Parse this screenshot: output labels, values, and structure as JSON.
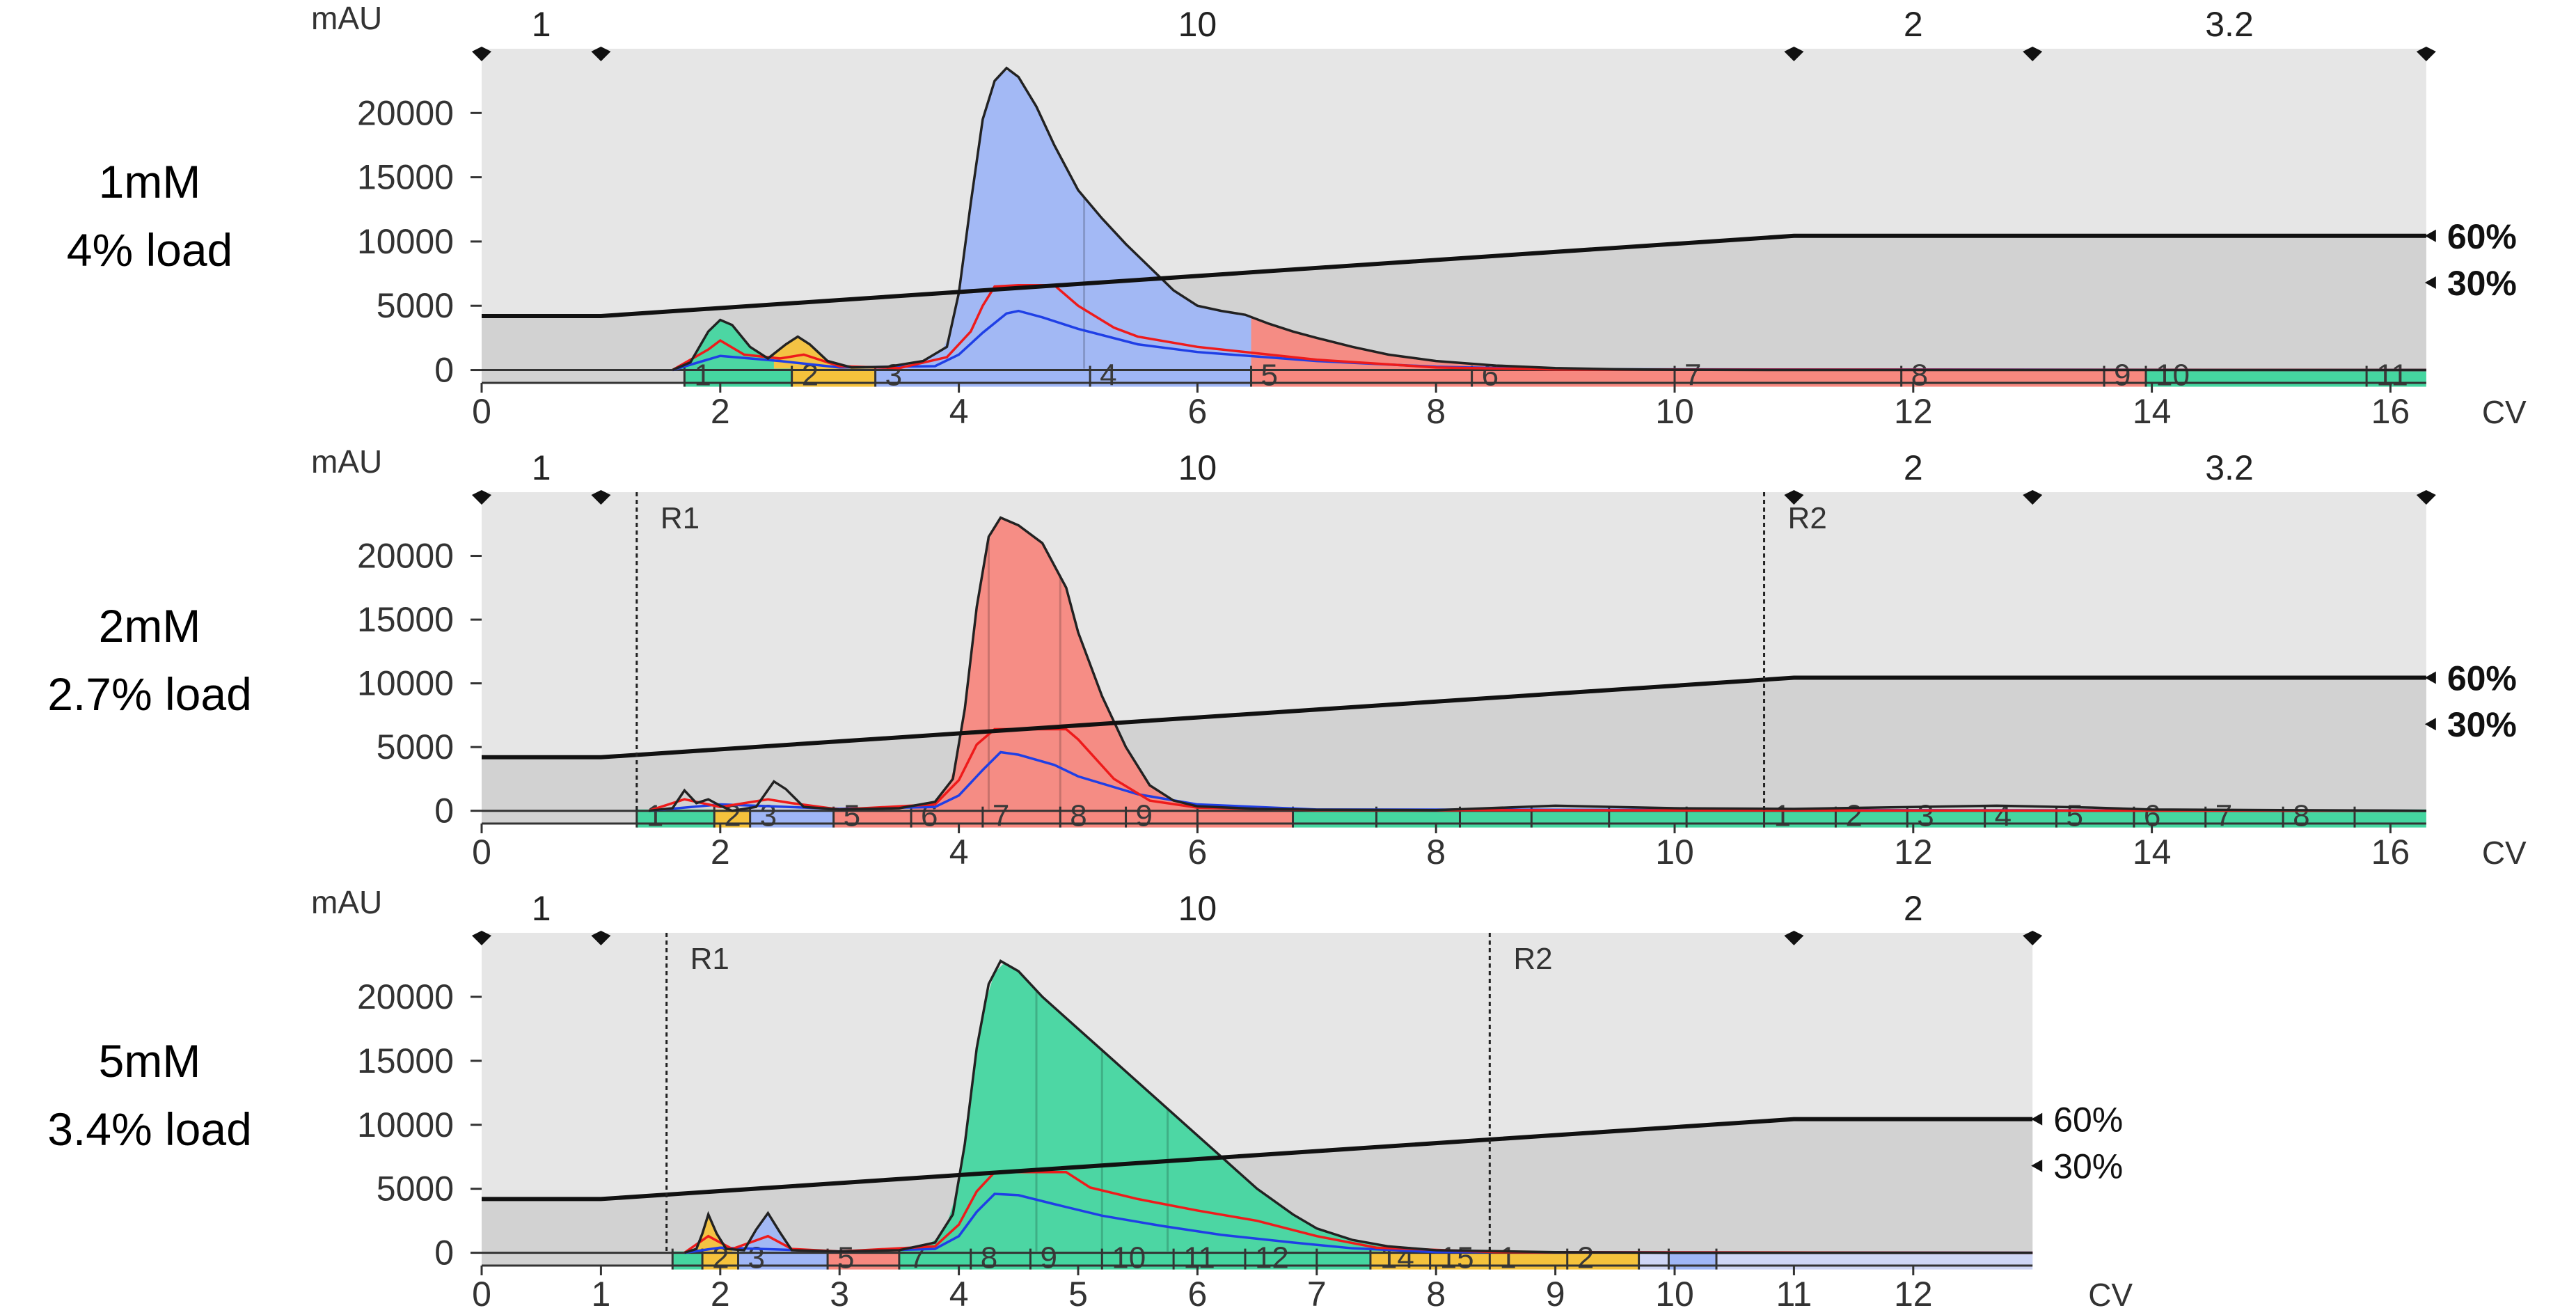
{
  "chart_data": [
    {
      "type": "area",
      "panel_label": [
        "1mM",
        "4% load"
      ],
      "xlabel": "CV",
      "ylabel": "mAU",
      "xlim": [
        0,
        16.3
      ],
      "ylim": [
        -1000,
        25000
      ],
      "xticks": [
        0,
        2,
        4,
        6,
        8,
        10,
        12,
        14,
        16
      ],
      "yticks": [
        0,
        5000,
        10000,
        15000,
        20000
      ],
      "top_markers": [
        {
          "x": 0,
          "label": "1"
        },
        {
          "x": 1,
          "label": ""
        },
        {
          "x": 11,
          "label": "10"
        },
        {
          "x": 13,
          "label": "2"
        },
        {
          "x": 16.3,
          "label": "3.2"
        }
      ],
      "top_label_positions": [
        0.5,
        6,
        12,
        14.65
      ],
      "gradient_percent_labels": [
        "60%",
        "30%"
      ],
      "gradient_label_values": [
        60,
        30
      ],
      "gradient": [
        [
          0,
          20
        ],
        [
          1,
          20
        ],
        [
          11,
          44
        ],
        [
          16.3,
          44
        ]
      ],
      "reference_lines": [],
      "uv280": {
        "x": [
          1.6,
          1.75,
          1.9,
          2.0,
          2.1,
          2.25,
          2.4,
          2.55,
          2.65,
          2.75,
          2.9,
          3.1,
          3.4,
          3.7,
          3.9,
          4.0,
          4.1,
          4.2,
          4.3,
          4.4,
          4.5,
          4.65,
          4.8,
          5.0,
          5.2,
          5.4,
          5.6,
          5.8,
          6.0,
          6.2,
          6.4,
          6.6,
          6.8,
          7.0,
          7.3,
          7.6,
          8.0,
          8.5,
          9.0,
          9.5,
          10.0,
          11.0,
          12.0,
          14.0,
          16.3
        ],
        "y": [
          0,
          600,
          3000,
          3900,
          3500,
          1800,
          900,
          2000,
          2600,
          2000,
          700,
          200,
          250,
          700,
          1800,
          6000,
          13000,
          19500,
          22500,
          23500,
          22800,
          20500,
          17500,
          14000,
          11800,
          9800,
          8000,
          6200,
          5000,
          4600,
          4300,
          3600,
          3000,
          2500,
          1800,
          1200,
          700,
          350,
          150,
          60,
          20,
          0,
          0,
          0,
          0
        ]
      },
      "uv260": {
        "x": [
          1.6,
          1.9,
          2.0,
          2.2,
          2.5,
          2.7,
          3.0,
          3.5,
          3.9,
          4.1,
          4.2,
          4.3,
          4.5,
          4.8,
          5.0,
          5.3,
          5.5,
          6.0,
          7.0,
          8.0,
          9.0,
          16.3
        ],
        "y": [
          0,
          1600,
          2300,
          1200,
          900,
          1200,
          300,
          150,
          1000,
          3000,
          5000,
          6500,
          6600,
          6600,
          5000,
          3300,
          2600,
          1800,
          800,
          200,
          40,
          0
        ]
      },
      "conductivity": {
        "x": [
          1.6,
          2.0,
          2.5,
          3.0,
          3.8,
          4.0,
          4.2,
          4.4,
          4.5,
          4.7,
          5.0,
          5.5,
          6.0,
          7.0,
          8.0,
          9.0,
          16.3
        ],
        "y": [
          0,
          1100,
          700,
          200,
          300,
          1200,
          2900,
          4400,
          4600,
          4100,
          3200,
          2000,
          1400,
          700,
          250,
          60,
          0
        ]
      },
      "fractions": [
        {
          "x0": 1.7,
          "x1": 2.6,
          "label": "1",
          "color": "#45d6a0"
        },
        {
          "x0": 2.6,
          "x1": 3.3,
          "label": "2",
          "color": "#f5c23c"
        },
        {
          "x0": 3.3,
          "x1": 5.1,
          "label": "3",
          "color": "#9fb6f6"
        },
        {
          "x0": 5.1,
          "x1": 6.45,
          "label": "4",
          "color": "#9fb6f6"
        },
        {
          "x0": 6.45,
          "x1": 8.3,
          "label": "5",
          "color": "#f7887f"
        },
        {
          "x0": 8.3,
          "x1": 10.0,
          "label": "6",
          "color": "#f7887f"
        },
        {
          "x0": 10.0,
          "x1": 11.9,
          "label": "7",
          "color": "#f7887f"
        },
        {
          "x0": 11.9,
          "x1": 13.6,
          "label": "8",
          "color": "#f7887f"
        },
        {
          "x0": 13.6,
          "x1": 13.95,
          "label": "9",
          "color": "#f7887f"
        },
        {
          "x0": 13.95,
          "x1": 15.8,
          "label": "10",
          "color": "#45d6a0"
        },
        {
          "x0": 15.8,
          "x1": 16.3,
          "label": "11",
          "color": "#45d6a0"
        }
      ],
      "fill_segments": [
        {
          "x0": 1.6,
          "x1": 2.45,
          "color": "#45d6a0"
        },
        {
          "x0": 2.45,
          "x1": 3.0,
          "color": "#f5c23c"
        },
        {
          "x0": 3.0,
          "x1": 6.45,
          "color": "#9fb6f6"
        },
        {
          "x0": 6.45,
          "x1": 10.0,
          "color": "#f7887f"
        }
      ],
      "divider_lines": [
        5.05
      ]
    },
    {
      "type": "area",
      "panel_label": [
        "2mM",
        "2.7% load"
      ],
      "xlabel": "CV",
      "ylabel": "mAU",
      "xlim": [
        0,
        16.3
      ],
      "ylim": [
        -1000,
        25000
      ],
      "xticks": [
        0,
        2,
        4,
        6,
        8,
        10,
        12,
        14,
        16
      ],
      "yticks": [
        0,
        5000,
        10000,
        15000,
        20000
      ],
      "top_markers": [
        {
          "x": 0,
          "label": "1"
        },
        {
          "x": 1,
          "label": ""
        },
        {
          "x": 11,
          "label": "10"
        },
        {
          "x": 13,
          "label": "2"
        },
        {
          "x": 16.3,
          "label": "3.2"
        }
      ],
      "top_label_positions": [
        0.5,
        6,
        12,
        14.65
      ],
      "gradient_percent_labels": [
        "60%",
        "30%"
      ],
      "gradient_label_values": [
        60,
        30
      ],
      "gradient": [
        [
          0,
          20
        ],
        [
          1,
          20
        ],
        [
          11,
          44
        ],
        [
          16.3,
          44
        ]
      ],
      "reference_lines": [
        {
          "x": 1.3,
          "label": "R1"
        },
        {
          "x": 10.75,
          "label": "R2"
        }
      ],
      "uv280": {
        "x": [
          1.4,
          1.6,
          1.7,
          1.8,
          1.9,
          2.0,
          2.1,
          2.3,
          2.45,
          2.55,
          2.7,
          3.0,
          3.5,
          3.8,
          3.95,
          4.05,
          4.15,
          4.25,
          4.35,
          4.5,
          4.7,
          4.9,
          5.0,
          5.2,
          5.4,
          5.6,
          5.8,
          6.0,
          6.5,
          7.0,
          8.0,
          9.0,
          10.0,
          11.0,
          12.0,
          12.7,
          13.5,
          14.0,
          16.3
        ],
        "y": [
          0,
          200,
          1600,
          600,
          900,
          400,
          0,
          300,
          2300,
          1700,
          300,
          100,
          200,
          700,
          2500,
          8000,
          16000,
          21500,
          23000,
          22400,
          21000,
          17500,
          14000,
          9000,
          5000,
          2000,
          800,
          350,
          150,
          80,
          50,
          400,
          200,
          150,
          300,
          400,
          250,
          100,
          0
        ]
      },
      "uv260": {
        "x": [
          1.4,
          1.7,
          2.0,
          2.4,
          2.6,
          3.0,
          3.8,
          4.0,
          4.15,
          4.3,
          4.6,
          4.9,
          5.0,
          5.3,
          5.6,
          6.0,
          7.0,
          16.3
        ],
        "y": [
          0,
          900,
          300,
          900,
          600,
          100,
          500,
          2400,
          5200,
          6400,
          6400,
          6400,
          5600,
          2500,
          800,
          250,
          50,
          0
        ]
      },
      "conductivity": {
        "x": [
          1.4,
          2.0,
          3.0,
          3.8,
          4.0,
          4.2,
          4.35,
          4.5,
          4.8,
          5.0,
          5.5,
          6.0,
          7.0,
          16.3
        ],
        "y": [
          0,
          500,
          150,
          300,
          1200,
          3200,
          4600,
          4400,
          3600,
          2700,
          1300,
          500,
          100,
          0
        ]
      },
      "fractions": [
        {
          "x0": 1.3,
          "x1": 1.95,
          "label": "1",
          "color": "#45d6a0"
        },
        {
          "x0": 1.95,
          "x1": 2.25,
          "label": "2",
          "color": "#f5c23c"
        },
        {
          "x0": 2.25,
          "x1": 2.95,
          "label": "3",
          "color": "#9fb6f6"
        },
        {
          "x0": 2.95,
          "x1": 3.6,
          "label": "5",
          "color": "#f7887f"
        },
        {
          "x0": 3.6,
          "x1": 4.2,
          "label": "6",
          "color": "#f7887f"
        },
        {
          "x0": 4.2,
          "x1": 4.85,
          "label": "7",
          "color": "#f7887f"
        },
        {
          "x0": 4.85,
          "x1": 5.4,
          "label": "8",
          "color": "#f7887f"
        },
        {
          "x0": 5.4,
          "x1": 6.0,
          "label": "9",
          "color": "#f7887f"
        },
        {
          "x0": 6.0,
          "x1": 6.8,
          "label": "",
          "color": "#f7887f"
        },
        {
          "x0": 6.8,
          "x1": 7.5,
          "label": "",
          "color": "#45d6a0"
        },
        {
          "x0": 7.5,
          "x1": 8.2,
          "label": "",
          "color": "#45d6a0"
        },
        {
          "x0": 8.2,
          "x1": 8.8,
          "label": "",
          "color": "#45d6a0"
        },
        {
          "x0": 8.8,
          "x1": 9.45,
          "label": "",
          "color": "#45d6a0"
        },
        {
          "x0": 9.45,
          "x1": 10.1,
          "label": "",
          "color": "#45d6a0"
        },
        {
          "x0": 10.1,
          "x1": 10.75,
          "label": "",
          "color": "#45d6a0"
        },
        {
          "x0": 10.75,
          "x1": 11.35,
          "label": "1",
          "color": "#45d6a0"
        },
        {
          "x0": 11.35,
          "x1": 11.95,
          "label": "2",
          "color": "#45d6a0"
        },
        {
          "x0": 11.95,
          "x1": 12.6,
          "label": "3",
          "color": "#45d6a0"
        },
        {
          "x0": 12.6,
          "x1": 13.2,
          "label": "4",
          "color": "#45d6a0"
        },
        {
          "x0": 13.2,
          "x1": 13.85,
          "label": "5",
          "color": "#45d6a0"
        },
        {
          "x0": 13.85,
          "x1": 14.45,
          "label": "6",
          "color": "#45d6a0"
        },
        {
          "x0": 14.45,
          "x1": 15.1,
          "label": "7",
          "color": "#45d6a0"
        },
        {
          "x0": 15.1,
          "x1": 15.7,
          "label": "8",
          "color": "#45d6a0"
        },
        {
          "x0": 15.7,
          "x1": 16.3,
          "label": "",
          "color": "#45d6a0"
        }
      ],
      "fill_segments": [
        {
          "x0": 3.6,
          "x1": 6.8,
          "color": "#f7887f"
        }
      ],
      "divider_lines": [
        4.25,
        4.85
      ]
    },
    {
      "type": "area",
      "panel_label": [
        "5mM",
        "3.4% load"
      ],
      "xlabel": "CV",
      "ylabel": "mAU",
      "xlim": [
        0,
        13.0
      ],
      "ylim": [
        -1000,
        25000
      ],
      "xticks": [
        0,
        1,
        2,
        3,
        4,
        5,
        6,
        7,
        8,
        9,
        10,
        11,
        12
      ],
      "yticks": [
        0,
        5000,
        10000,
        15000,
        20000
      ],
      "top_markers": [
        {
          "x": 0,
          "label": "1"
        },
        {
          "x": 1,
          "label": ""
        },
        {
          "x": 11,
          "label": "10"
        },
        {
          "x": 13,
          "label": "2"
        }
      ],
      "top_label_positions": [
        0.5,
        6,
        12
      ],
      "gradient_percent_labels": [
        "60%",
        "30%"
      ],
      "gradient_label_values": [
        60,
        30
      ],
      "gradient": [
        [
          0,
          20
        ],
        [
          1,
          20
        ],
        [
          11,
          44
        ],
        [
          13.0,
          44
        ]
      ],
      "reference_lines": [
        {
          "x": 1.55,
          "label": "R1"
        },
        {
          "x": 8.45,
          "label": "R2"
        }
      ],
      "uv280": {
        "x": [
          1.7,
          1.8,
          1.85,
          1.9,
          1.97,
          2.05,
          2.2,
          2.3,
          2.4,
          2.5,
          2.6,
          3.0,
          3.5,
          3.8,
          3.95,
          4.05,
          4.15,
          4.25,
          4.35,
          4.5,
          4.7,
          5.0,
          5.3,
          5.6,
          5.9,
          6.2,
          6.5,
          6.8,
          7.0,
          7.3,
          7.6,
          8.0,
          9.0,
          10.0,
          13.0
        ],
        "y": [
          0,
          300,
          1500,
          3000,
          1500,
          300,
          200,
          1800,
          3100,
          1600,
          200,
          100,
          200,
          800,
          3000,
          8500,
          16000,
          21000,
          22800,
          22000,
          20000,
          17500,
          15000,
          12500,
          10000,
          7500,
          5000,
          3000,
          1900,
          1000,
          500,
          200,
          50,
          0,
          0
        ]
      },
      "uv260": {
        "x": [
          1.7,
          1.9,
          2.1,
          2.4,
          2.6,
          3.0,
          3.8,
          4.0,
          4.15,
          4.3,
          4.5,
          4.9,
          5.1,
          5.5,
          6.0,
          6.5,
          7.0,
          7.5,
          8.5,
          13.0
        ],
        "y": [
          0,
          1300,
          300,
          1300,
          300,
          100,
          500,
          2200,
          4800,
          6300,
          6300,
          6300,
          5100,
          4200,
          3300,
          2500,
          1300,
          400,
          50,
          0
        ]
      },
      "conductivity": {
        "x": [
          1.7,
          2.0,
          3.0,
          3.8,
          4.0,
          4.15,
          4.3,
          4.5,
          4.8,
          5.2,
          5.7,
          6.2,
          6.8,
          7.3,
          8.0,
          13.0
        ],
        "y": [
          0,
          400,
          100,
          300,
          1300,
          3200,
          4600,
          4500,
          3800,
          2900,
          2100,
          1400,
          800,
          350,
          50,
          0
        ]
      },
      "fractions": [
        {
          "x0": 1.6,
          "x1": 1.85,
          "label": "",
          "color": "#45d6a0"
        },
        {
          "x0": 1.85,
          "x1": 2.15,
          "label": "2",
          "color": "#f5c23c"
        },
        {
          "x0": 2.15,
          "x1": 2.9,
          "label": "3",
          "color": "#9fb6f6"
        },
        {
          "x0": 2.9,
          "x1": 3.5,
          "label": "5",
          "color": "#f7887f"
        },
        {
          "x0": 3.5,
          "x1": 4.1,
          "label": "7",
          "color": "#45d6a0"
        },
        {
          "x0": 4.1,
          "x1": 4.6,
          "label": "8",
          "color": "#45d6a0"
        },
        {
          "x0": 4.6,
          "x1": 5.2,
          "label": "9",
          "color": "#45d6a0"
        },
        {
          "x0": 5.2,
          "x1": 5.8,
          "label": "10",
          "color": "#45d6a0"
        },
        {
          "x0": 5.8,
          "x1": 6.4,
          "label": "11",
          "color": "#45d6a0"
        },
        {
          "x0": 6.4,
          "x1": 7.0,
          "label": "12",
          "color": "#45d6a0"
        },
        {
          "x0": 7.0,
          "x1": 7.45,
          "label": "",
          "color": "#45d6a0"
        },
        {
          "x0": 7.45,
          "x1": 7.95,
          "label": "14",
          "color": "#f5c23c"
        },
        {
          "x0": 7.95,
          "x1": 8.45,
          "label": "15",
          "color": "#f5c23c"
        },
        {
          "x0": 8.45,
          "x1": 9.1,
          "label": "1",
          "color": "#f5c23c"
        },
        {
          "x0": 9.1,
          "x1": 9.7,
          "label": "2",
          "color": "#f5c23c"
        },
        {
          "x0": 9.7,
          "x1": 9.95,
          "label": "",
          "color": "#cfd6f5"
        },
        {
          "x0": 9.95,
          "x1": 10.35,
          "label": "",
          "color": "#9fb6f6"
        },
        {
          "x0": 10.35,
          "x1": 13.0,
          "label": "",
          "color": "#cfd6f5"
        }
      ],
      "fill_segments": [
        {
          "x0": 1.8,
          "x1": 2.1,
          "color": "#f5c23c"
        },
        {
          "x0": 2.2,
          "x1": 2.65,
          "color": "#9fb6f6"
        },
        {
          "x0": 3.5,
          "x1": 8.3,
          "color": "#45d6a0"
        }
      ],
      "divider_lines": [
        4.65,
        5.2,
        5.75
      ]
    }
  ]
}
